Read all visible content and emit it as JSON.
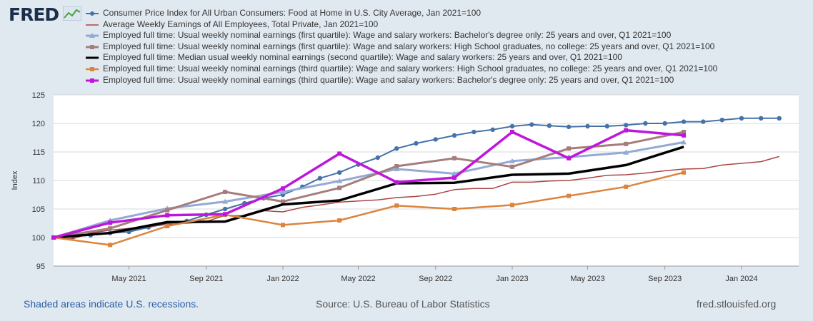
{
  "header": {
    "logo_text": "FRED"
  },
  "chart_data": {
    "type": "line",
    "ylabel": "Index",
    "ylim": [
      95,
      125
    ],
    "yticks": [
      95,
      100,
      105,
      110,
      115,
      120,
      125
    ],
    "xlim": [
      "2021-01-01",
      "2024-04-01"
    ],
    "xticks": [
      {
        "date": "2021-05-01",
        "label": "May 2021"
      },
      {
        "date": "2021-09-01",
        "label": "Sep 2021"
      },
      {
        "date": "2022-01-01",
        "label": "Jan 2022"
      },
      {
        "date": "2022-05-01",
        "label": "May 2022"
      },
      {
        "date": "2022-09-01",
        "label": "Sep 2022"
      },
      {
        "date": "2023-01-01",
        "label": "Jan 2023"
      },
      {
        "date": "2023-05-01",
        "label": "May 2023"
      },
      {
        "date": "2023-09-01",
        "label": "Sep 2023"
      },
      {
        "date": "2024-01-01",
        "label": "Jan 2024"
      }
    ],
    "grid": true,
    "legend_position": "top",
    "series": [
      {
        "name": "Consumer Price Index for All Urban Consumers: Food at Home in U.S. City Average, Jan 2021=100",
        "color": "#4572a7",
        "marker": "circle",
        "width": 2,
        "x": [
          "2021-01-01",
          "2021-02-01",
          "2021-03-01",
          "2021-04-01",
          "2021-05-01",
          "2021-06-01",
          "2021-07-01",
          "2021-08-01",
          "2021-09-01",
          "2021-10-01",
          "2021-11-01",
          "2021-12-01",
          "2022-01-01",
          "2022-02-01",
          "2022-03-01",
          "2022-04-01",
          "2022-05-01",
          "2022-06-01",
          "2022-07-01",
          "2022-08-01",
          "2022-09-01",
          "2022-10-01",
          "2022-11-01",
          "2022-12-01",
          "2023-01-01",
          "2023-02-01",
          "2023-03-01",
          "2023-04-01",
          "2023-05-01",
          "2023-06-01",
          "2023-07-01",
          "2023-08-01",
          "2023-09-01",
          "2023-10-01",
          "2023-11-01",
          "2023-12-01",
          "2024-01-01",
          "2024-02-01",
          "2024-03-01"
        ],
        "y": [
          100.0,
          100.2,
          100.4,
          100.8,
          101.0,
          101.8,
          102.5,
          102.9,
          104.0,
          105.0,
          106.0,
          106.9,
          107.5,
          108.9,
          110.4,
          111.4,
          112.8,
          114.0,
          115.6,
          116.5,
          117.2,
          117.9,
          118.5,
          118.9,
          119.5,
          119.8,
          119.6,
          119.4,
          119.5,
          119.5,
          119.7,
          120.0,
          120.0,
          120.3,
          120.3,
          120.6,
          120.9,
          120.9,
          120.9
        ]
      },
      {
        "name": "Average Weekly Earnings of All Employees, Total Private, Jan 2021=100",
        "color": "#aa4643",
        "marker": "none",
        "width": 1.5,
        "x": [
          "2021-01-01",
          "2021-02-01",
          "2021-03-01",
          "2021-04-01",
          "2021-05-01",
          "2021-06-01",
          "2021-07-01",
          "2021-08-01",
          "2021-09-01",
          "2021-10-01",
          "2021-11-01",
          "2021-12-01",
          "2022-01-01",
          "2022-02-01",
          "2022-03-01",
          "2022-04-01",
          "2022-05-01",
          "2022-06-01",
          "2022-07-01",
          "2022-08-01",
          "2022-09-01",
          "2022-10-01",
          "2022-11-01",
          "2022-12-01",
          "2023-01-01",
          "2023-02-01",
          "2023-03-01",
          "2023-04-01",
          "2023-05-01",
          "2023-06-01",
          "2023-07-01",
          "2023-08-01",
          "2023-09-01",
          "2023-10-01",
          "2023-11-01",
          "2023-12-01",
          "2024-01-01",
          "2024-02-01",
          "2024-03-01"
        ],
        "y": [
          100.0,
          99.8,
          100.8,
          101.3,
          101.6,
          101.9,
          102.3,
          102.5,
          102.8,
          103.9,
          103.8,
          104.7,
          104.5,
          105.3,
          105.7,
          106.2,
          106.4,
          106.6,
          107.0,
          107.2,
          107.6,
          108.4,
          108.6,
          108.6,
          109.7,
          109.7,
          109.9,
          110.0,
          110.4,
          110.9,
          111.0,
          111.3,
          111.7,
          112.0,
          112.1,
          112.7,
          113.0,
          113.3,
          114.2
        ]
      },
      {
        "name": "Employed full time: Usual weekly nominal earnings (first quartile): Wage and salary workers: Bachelor's degree only: 25 years and over, Q1 2021=100",
        "color": "#93aad6",
        "marker": "triangle",
        "width": 3,
        "x": [
          "2021-01-01",
          "2021-04-01",
          "2021-07-01",
          "2021-10-01",
          "2022-01-01",
          "2022-04-01",
          "2022-07-01",
          "2022-10-01",
          "2023-01-01",
          "2023-04-01",
          "2023-07-01",
          "2023-10-01"
        ],
        "y": [
          100.0,
          103.0,
          105.1,
          106.3,
          108.0,
          109.9,
          112.0,
          111.2,
          113.4,
          114.1,
          114.9,
          116.7
        ]
      },
      {
        "name": "Employed full time: Usual weekly nominal earnings (first quartile): Wage and salary workers: High School graduates, no college: 25 years and over, Q1 2021=100",
        "color": "#a47d7c",
        "marker": "square",
        "width": 3,
        "x": [
          "2021-01-01",
          "2021-04-01",
          "2021-07-01",
          "2021-10-01",
          "2022-01-01",
          "2022-04-01",
          "2022-07-01",
          "2022-10-01",
          "2023-01-01",
          "2023-04-01",
          "2023-07-01",
          "2023-10-01"
        ],
        "y": [
          100.0,
          101.6,
          104.8,
          108.0,
          106.3,
          108.7,
          112.5,
          113.9,
          112.4,
          115.6,
          116.4,
          118.5
        ]
      },
      {
        "name": "Employed full time: Median usual weekly nominal earnings (second quartile): Wage and salary workers: 25 years and over, Q1 2021=100",
        "color": "#000000",
        "marker": "none",
        "width": 3.5,
        "x": [
          "2021-01-01",
          "2021-04-01",
          "2021-07-01",
          "2021-10-01",
          "2022-01-01",
          "2022-04-01",
          "2022-07-01",
          "2022-10-01",
          "2023-01-01",
          "2023-04-01",
          "2023-07-01",
          "2023-10-01"
        ],
        "y": [
          100.0,
          100.8,
          102.7,
          102.8,
          105.8,
          106.5,
          109.5,
          109.6,
          111.0,
          111.2,
          112.7,
          115.9
        ]
      },
      {
        "name": "Employed full time: Usual weekly nominal earnings (third quartile): Wage and salary workers: High School graduates, no college: 25 years and over, Q1 2021=100",
        "color": "#db843d",
        "marker": "square",
        "width": 2.5,
        "x": [
          "2021-01-01",
          "2021-04-01",
          "2021-07-01",
          "2021-10-01",
          "2022-01-01",
          "2022-04-01",
          "2022-07-01",
          "2022-10-01",
          "2023-01-01",
          "2023-04-01",
          "2023-07-01",
          "2023-10-01"
        ],
        "y": [
          100.0,
          98.7,
          102.0,
          104.0,
          102.2,
          103.0,
          105.6,
          105.0,
          105.7,
          107.3,
          108.9,
          111.4
        ]
      },
      {
        "name": "Employed full time: Usual weekly nominal earnings (third quartile): Wage and salary workers: Bachelor's degree only: 25 years and over, Q1 2021=100",
        "color": "#bf16dc",
        "marker": "square",
        "width": 3.5,
        "x": [
          "2021-01-01",
          "2021-04-01",
          "2021-07-01",
          "2021-10-01",
          "2022-01-01",
          "2022-04-01",
          "2022-07-01",
          "2022-10-01",
          "2023-01-01",
          "2023-04-01",
          "2023-07-01",
          "2023-10-01"
        ],
        "y": [
          100.0,
          102.6,
          103.9,
          104.1,
          108.6,
          114.7,
          109.7,
          110.5,
          118.5,
          113.9,
          118.8,
          117.9
        ]
      }
    ]
  },
  "footer": {
    "recession_note": "Shaded areas indicate U.S. recessions.",
    "source": "Source: U.S. Bureau of Labor Statistics",
    "site": "fred.stlouisfed.org"
  }
}
